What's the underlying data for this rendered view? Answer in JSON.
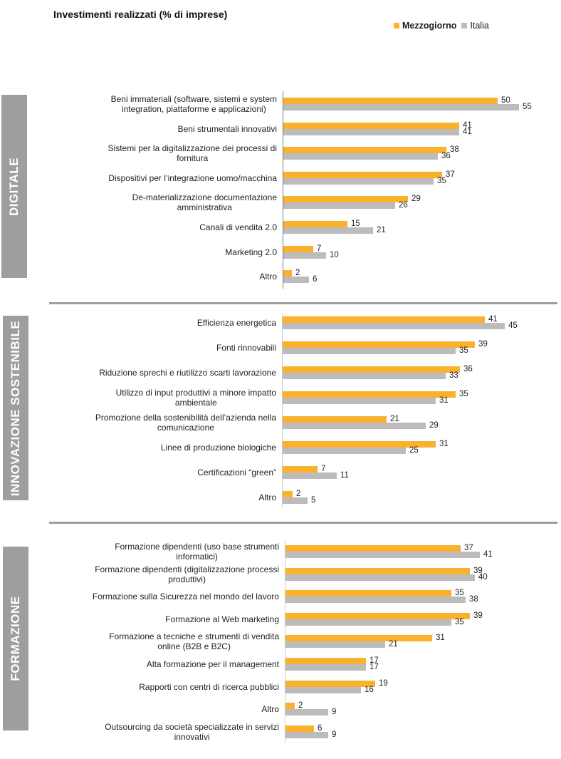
{
  "chart_data": {
    "type": "bar",
    "orientation": "horizontal",
    "title": "Investimenti realizzati (% di imprese)",
    "xlabel": "",
    "ylabel": "",
    "legend": {
      "placement": "top-right",
      "entries": [
        {
          "name": "Mezzogiorno",
          "color": "#f9b12e"
        },
        {
          "name": "Italia",
          "color": "#bdbbbb"
        }
      ]
    },
    "grid": false,
    "panels": [
      {
        "section": "DIGITALE",
        "categories": [
          [
            "Beni immateriali (software, sistemi e system",
            "integration, piattaforme e applicazioni)"
          ],
          [
            "Beni strumentali innovativi"
          ],
          [
            "Sistemi per la digitalizzazione dei processi di",
            "fornitura"
          ],
          [
            "Dispositivi per l’integrazione uomo/macchina"
          ],
          [
            "De-materializzazione documentazione",
            "amministrativa"
          ],
          [
            "Canali di vendita 2.0"
          ],
          [
            "Marketing 2.0"
          ],
          [
            "Altro"
          ]
        ],
        "series": [
          {
            "name": "Mezzogiorno",
            "values": [
              50,
              41,
              38,
              37,
              29,
              15,
              7,
              2
            ]
          },
          {
            "name": "Italia",
            "values": [
              55,
              41,
              36,
              35,
              26,
              21,
              10,
              6
            ]
          }
        ]
      },
      {
        "section": "INNOVAZIONE SOSTENIBILE",
        "categories": [
          [
            "Efficienza energetica"
          ],
          [
            "Fonti rinnovabili"
          ],
          [
            "Riduzione sprechi e riutilizzo scarti lavorazione"
          ],
          [
            "Utilizzo di input produttivi a minore impatto",
            "ambientale"
          ],
          [
            "Promozione della sostenibilità dell’azienda nella",
            "comunicazione"
          ],
          [
            "Linee di produzione biologiche"
          ],
          [
            "Certificazioni “green”"
          ],
          [
            "Altro"
          ]
        ],
        "series": [
          {
            "name": "Mezzogiorno",
            "values": [
              41,
              39,
              36,
              35,
              21,
              31,
              7,
              2
            ]
          },
          {
            "name": "Italia",
            "values": [
              45,
              35,
              33,
              31,
              29,
              25,
              11,
              5
            ]
          }
        ]
      },
      {
        "section": "FORMAZIONE",
        "categories": [
          [
            "Formazione dipendenti (uso base strumenti",
            "informatici)"
          ],
          [
            "Formazione dipendenti (digitalizzazione processi",
            "produttivi)"
          ],
          [
            "Formazione sulla Sicurezza nel mondo del lavoro"
          ],
          [
            "Formazione al Web marketing"
          ],
          [
            "Formazione a tecniche e strumenti di vendita",
            "online (B2B e B2C)"
          ],
          [
            "Alta formazione per il management"
          ],
          [
            "Rapporti con centri di ricerca pubblici"
          ],
          [
            "Altro"
          ],
          [
            "Outsourcing da società specializzate in servizi",
            "innovativi"
          ]
        ],
        "series": [
          {
            "name": "Mezzogiorno",
            "values": [
              37,
              39,
              35,
              39,
              31,
              17,
              19,
              2,
              6
            ]
          },
          {
            "name": "Italia",
            "values": [
              41,
              40,
              38,
              35,
              21,
              17,
              16,
              9,
              9
            ]
          }
        ]
      }
    ]
  }
}
